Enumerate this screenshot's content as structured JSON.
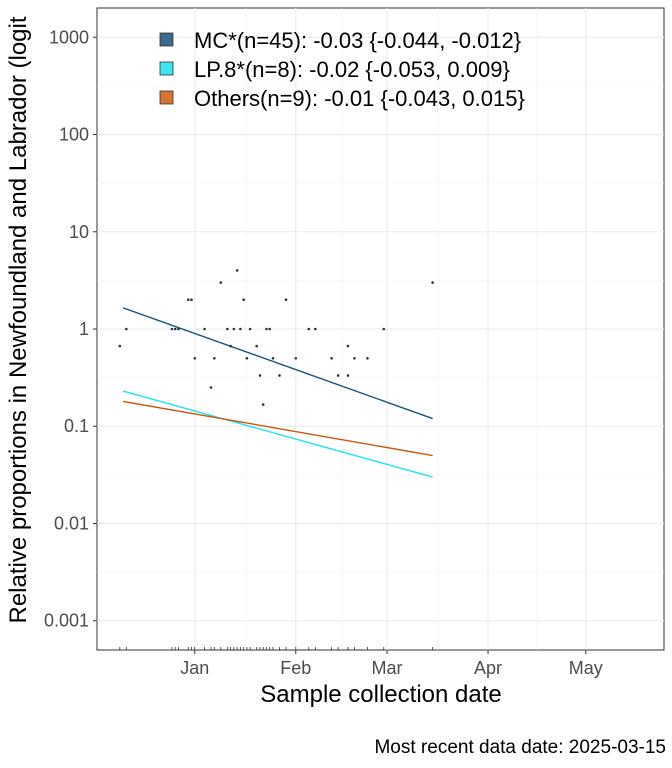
{
  "chart_data": {
    "type": "scatter",
    "title": "",
    "xlabel": "Sample collection date",
    "ylabel": "Relative proportions in Newfoundland and Labrador (logit",
    "y_scale": "log10",
    "ylim": [
      0.0005,
      2000
    ],
    "xlim": [
      "2024-12-02",
      "2025-05-25"
    ],
    "x_ticks": [
      {
        "date": "2025-01-01",
        "label": "Jan"
      },
      {
        "date": "2025-02-01",
        "label": "Feb"
      },
      {
        "date": "2025-03-01",
        "label": "Mar"
      },
      {
        "date": "2025-04-01",
        "label": "Apr"
      },
      {
        "date": "2025-05-01",
        "label": "May"
      }
    ],
    "y_ticks": [
      {
        "value": 0.001,
        "label": "0.001"
      },
      {
        "value": 0.01,
        "label": "0.01"
      },
      {
        "value": 0.1,
        "label": "0.1"
      },
      {
        "value": 1,
        "label": "1"
      },
      {
        "value": 10,
        "label": "10"
      },
      {
        "value": 100,
        "label": "100"
      },
      {
        "value": 1000,
        "label": "1000"
      }
    ],
    "grid": true,
    "legend_position": "top-left",
    "series": [
      {
        "name": "MC*(n=45): -0.03 {-0.044, -0.012}",
        "color": "#1b5479",
        "legend_fill": "#3b6a8a",
        "fit": [
          {
            "x": "2024-12-10",
            "y": 1.65
          },
          {
            "x": "2025-03-15",
            "y": 0.12
          }
        ]
      },
      {
        "name": "LP.8*(n=8): -0.02 {-0.053, 0.009}",
        "color": "#1fe6f0",
        "legend_fill": "#3ee5ee",
        "fit": [
          {
            "x": "2024-12-10",
            "y": 0.23
          },
          {
            "x": "2025-03-15",
            "y": 0.03
          }
        ]
      },
      {
        "name": "Others(n=9): -0.01 {-0.043, 0.015}",
        "color": "#c8580f",
        "legend_fill": "#d97333",
        "fit": [
          {
            "x": "2024-12-10",
            "y": 0.18
          },
          {
            "x": "2025-03-15",
            "y": 0.05
          }
        ]
      }
    ],
    "points": [
      {
        "x": "2024-12-09",
        "y": 0.667
      },
      {
        "x": "2024-12-11",
        "y": 1
      },
      {
        "x": "2024-12-25",
        "y": 1
      },
      {
        "x": "2024-12-26",
        "y": 1
      },
      {
        "x": "2024-12-27",
        "y": 1
      },
      {
        "x": "2024-12-30",
        "y": 2
      },
      {
        "x": "2024-12-31",
        "y": 2
      },
      {
        "x": "2025-01-01",
        "y": 0.5
      },
      {
        "x": "2025-01-04",
        "y": 1
      },
      {
        "x": "2025-01-06",
        "y": 0.25
      },
      {
        "x": "2025-01-07",
        "y": 0.5
      },
      {
        "x": "2025-01-09",
        "y": 3
      },
      {
        "x": "2025-01-11",
        "y": 1
      },
      {
        "x": "2025-01-12",
        "y": 0.667
      },
      {
        "x": "2025-01-13",
        "y": 1
      },
      {
        "x": "2025-01-14",
        "y": 4
      },
      {
        "x": "2025-01-15",
        "y": 1
      },
      {
        "x": "2025-01-16",
        "y": 2
      },
      {
        "x": "2025-01-17",
        "y": 0.5
      },
      {
        "x": "2025-01-18",
        "y": 1
      },
      {
        "x": "2025-01-20",
        "y": 0.667
      },
      {
        "x": "2025-01-21",
        "y": 0.333
      },
      {
        "x": "2025-01-22",
        "y": 0.167
      },
      {
        "x": "2025-01-23",
        "y": 1
      },
      {
        "x": "2025-01-24",
        "y": 1
      },
      {
        "x": "2025-01-25",
        "y": 0.5
      },
      {
        "x": "2025-01-27",
        "y": 0.333
      },
      {
        "x": "2025-01-29",
        "y": 2
      },
      {
        "x": "2025-02-01",
        "y": 0.5
      },
      {
        "x": "2025-02-05",
        "y": 1
      },
      {
        "x": "2025-02-07",
        "y": 1
      },
      {
        "x": "2025-02-12",
        "y": 0.5
      },
      {
        "x": "2025-02-14",
        "y": 0.333
      },
      {
        "x": "2025-02-17",
        "y": 0.333
      },
      {
        "x": "2025-02-17",
        "y": 0.667
      },
      {
        "x": "2025-02-19",
        "y": 0.5
      },
      {
        "x": "2025-02-23",
        "y": 0.5
      },
      {
        "x": "2025-02-28",
        "y": 1
      },
      {
        "x": "2025-03-15",
        "y": 3
      }
    ]
  },
  "caption": "Most recent data date: 2025-03-15"
}
